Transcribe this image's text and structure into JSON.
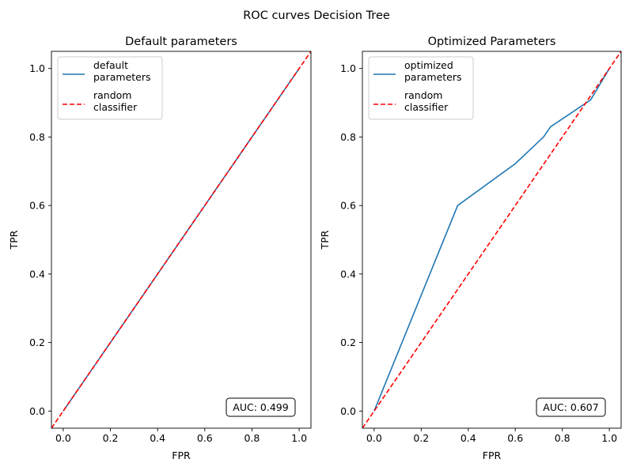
{
  "suptitle": "ROC curves Decision Tree",
  "colors": {
    "model": "#1f77b4",
    "random": "#ff0000"
  },
  "chart_data": [
    {
      "type": "line",
      "title": "Default parameters",
      "xlabel": "FPR",
      "ylabel": "TPR",
      "xlim": [
        -0.05,
        1.05
      ],
      "ylim": [
        -0.05,
        1.05
      ],
      "xticks": [
        "0.0",
        "0.2",
        "0.4",
        "0.6",
        "0.8",
        "1.0"
      ],
      "yticks": [
        "0.0",
        "0.2",
        "0.4",
        "0.6",
        "0.8",
        "1.0"
      ],
      "grid": false,
      "legend_position": "top-left",
      "annotation": "AUC: 0.499",
      "series": [
        {
          "name": "default\nparameters",
          "style": "solid",
          "x": [
            0,
            1
          ],
          "y": [
            0,
            1
          ]
        },
        {
          "name": "random\nclassifier",
          "style": "dashed",
          "x": [
            -0.05,
            1.05
          ],
          "y": [
            -0.05,
            1.05
          ]
        }
      ]
    },
    {
      "type": "line",
      "title": "Optimized Parameters",
      "xlabel": "FPR",
      "ylabel": "TPR",
      "xlim": [
        -0.05,
        1.05
      ],
      "ylim": [
        -0.05,
        1.05
      ],
      "xticks": [
        "0.0",
        "0.2",
        "0.4",
        "0.6",
        "0.8",
        "1.0"
      ],
      "yticks": [
        "0.0",
        "0.2",
        "0.4",
        "0.6",
        "0.8",
        "1.0"
      ],
      "grid": false,
      "legend_position": "top-left",
      "annotation": "AUC: 0.607",
      "series": [
        {
          "name": "optimized\nparameters",
          "style": "solid",
          "x": [
            0,
            0.355,
            0.6,
            0.72,
            0.75,
            0.92,
            1.0
          ],
          "y": [
            0,
            0.6,
            0.722,
            0.8,
            0.83,
            0.908,
            1.0
          ]
        },
        {
          "name": "random\nclassifier",
          "style": "dashed",
          "x": [
            -0.05,
            1.05
          ],
          "y": [
            -0.05,
            1.05
          ]
        }
      ]
    }
  ]
}
